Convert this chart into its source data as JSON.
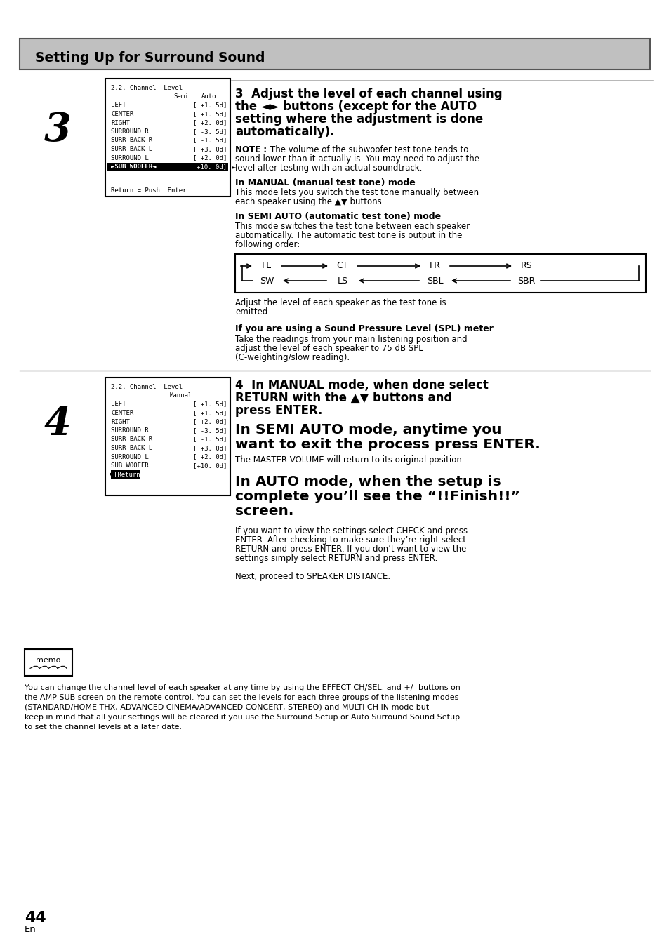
{
  "page_bg": "#ffffff",
  "header_bg": "#c0c0c0",
  "header_text": "Setting Up for Surround Sound",
  "screen3_title": "2.2. Channel  Level",
  "screen3_col1": "Semi",
  "screen3_col2": "Auto",
  "screen3_rows": [
    [
      "LEFT",
      "[ +1. 5d]"
    ],
    [
      "CENTER",
      "[ +1. 5d]"
    ],
    [
      "RIGHT",
      "[ +2. 0d]"
    ],
    [
      "SURROUND R",
      "[ -3. 5d]"
    ],
    [
      "SURR BACK R",
      "[ -1. 5d]"
    ],
    [
      "SURR BACK L",
      "[ +3. 0d]"
    ],
    [
      "SURROUND L",
      "[ +2. 0d]"
    ]
  ],
  "screen3_highlight_label": "►SUB WOOFER◄",
  "screen3_highlight_value": "+10. 0d]",
  "screen3_footer": "Return = Push  Enter",
  "screen4_title": "2.2. Channel  Level",
  "screen4_col1": "Manual",
  "screen4_rows": [
    [
      "LEFT",
      "[ +1. 5d]"
    ],
    [
      "CENTER",
      "[ +1. 5d]"
    ],
    [
      "RIGHT",
      "[ +2. 0d]"
    ],
    [
      "SURROUND R",
      "[ -3. 5d]"
    ],
    [
      "SURR BACK R",
      "[ -1. 5d]"
    ],
    [
      "SURR BACK L",
      "[ +3. 0d]"
    ],
    [
      "SURROUND L",
      "[ +2. 0d]"
    ],
    [
      "SUB WOOFER",
      "[+10. 0d]"
    ]
  ],
  "screen4_return": "►[Return]",
  "memo_text": "You can change the channel level of each speaker at any time by using the EFFECT CH/SEL. and +/- buttons on\nthe AMP SUB screen on the remote control. You can set the levels for each three groups of the listening modes\n(STANDARD/HOME THX, ADVANCED CINEMA/ADVANCED CONCERT, STEREO) and MULTI CH IN mode but\nkeep in mind that all your settings will be cleared if you use the Surround Setup or Auto Surround Sound Setup\nto set the channel levels at a later date."
}
